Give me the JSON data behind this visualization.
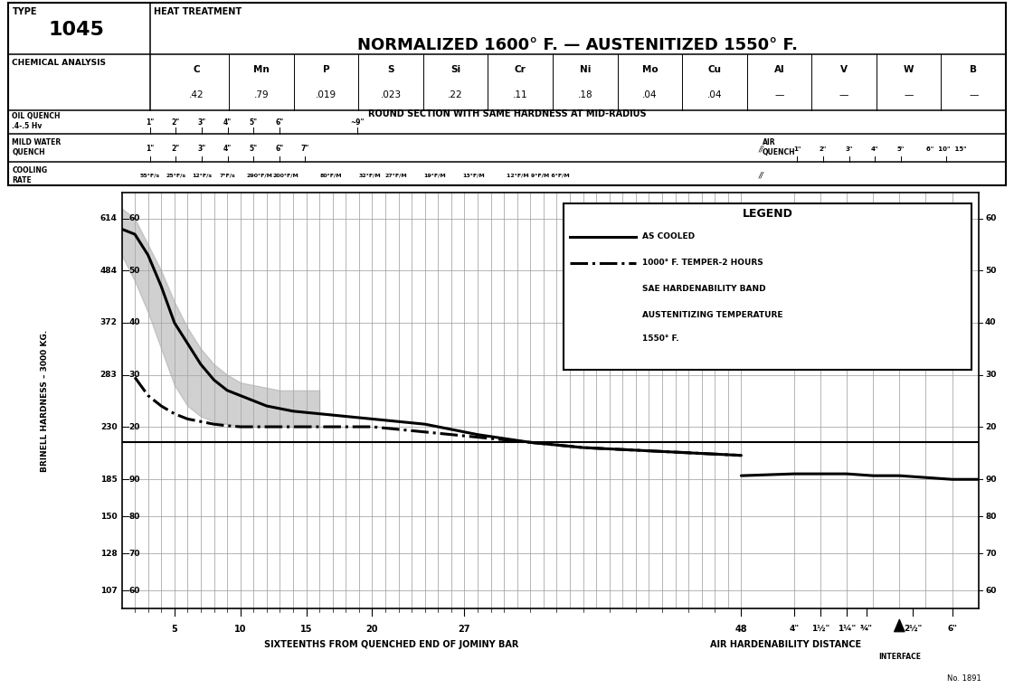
{
  "title_type": "TYPE",
  "title_number": "1045",
  "title_treatment": "HEAT TREATMENT",
  "title_main": "NORMALIZED 1600° F. — AUSTENITIZED 1550° F.",
  "chem_elements": [
    "C",
    "Mn",
    "P",
    "S",
    "Si",
    "Cr",
    "Ni",
    "Mo",
    "Cu",
    "Al",
    "V",
    "W",
    "B"
  ],
  "chem_values": [
    ".42",
    ".79",
    ".019",
    ".023",
    ".22",
    ".11",
    ".18",
    ".04",
    ".04",
    "—",
    "—",
    "—",
    "—"
  ],
  "round_section_text": "ROUND SECTION WITH SAME HARDNESS AT MID-RADIUS",
  "ylabel_brinell": "BRINELL HARDNESS – 3000 KG.",
  "xlabel_jominy": "SIXTEENTHS FROM QUENCHED END OF JOMINY BAR",
  "xlabel_air": "AIR HARDENABILITY DISTANCE",
  "legend_title": "LEGEND",
  "legend_items": [
    "AS COOLED",
    "1000° F. TEMPER-2 HOURS",
    "SAE HARDENABILITY BAND",
    "AUSTENITIZING TEMPERATURE",
    "1550° F."
  ],
  "as_cooled_x": [
    1,
    2,
    3,
    4,
    5,
    6,
    7,
    8,
    9,
    10,
    12,
    14,
    16,
    18,
    20,
    22,
    24,
    26,
    28,
    32,
    36,
    40,
    44,
    48
  ],
  "as_cooled_y": [
    58,
    57,
    53,
    47,
    40,
    36,
    32,
    29,
    27,
    26,
    24,
    23,
    22.5,
    22,
    21.5,
    21,
    20.5,
    19.5,
    18.5,
    17,
    16,
    15.5,
    15,
    14.5
  ],
  "temper_x": [
    2,
    3,
    4,
    5,
    6,
    7,
    8,
    9,
    10,
    12,
    14,
    16,
    18,
    20,
    22,
    24,
    26,
    28,
    32,
    36,
    40,
    44,
    48
  ],
  "temper_y": [
    29.5,
    26,
    24,
    22.5,
    21.5,
    21,
    20.5,
    20.2,
    20,
    20,
    20,
    20,
    20,
    20,
    19.5,
    19,
    18.5,
    18,
    17,
    16,
    15.5,
    15,
    14.5
  ],
  "band_upper_x": [
    1,
    2,
    3,
    4,
    5,
    6,
    7,
    8,
    9,
    10,
    11,
    12,
    13,
    14,
    15,
    16
  ],
  "band_upper_y": [
    62,
    60,
    55,
    50,
    44,
    39,
    35,
    32,
    30,
    28.5,
    28,
    27.5,
    27,
    27,
    27,
    27
  ],
  "band_lower_x": [
    1,
    2,
    3,
    4,
    5,
    6,
    7,
    8,
    9,
    10,
    11,
    12,
    13,
    14,
    15,
    16
  ],
  "band_lower_y": [
    53,
    48,
    42,
    35,
    28,
    24,
    22,
    21,
    20.5,
    20,
    20,
    20,
    20,
    20,
    20,
    20
  ],
  "air_x_pos": [
    48,
    52,
    54,
    56,
    58,
    60,
    62,
    64,
    66
  ],
  "air_rb": [
    91,
    91.5,
    91.5,
    91.5,
    91,
    91,
    90.5,
    90,
    90
  ],
  "bg_color": "#ffffff",
  "grid_color": "#999999",
  "line_color": "#000000",
  "band_color": "#aaaaaa"
}
